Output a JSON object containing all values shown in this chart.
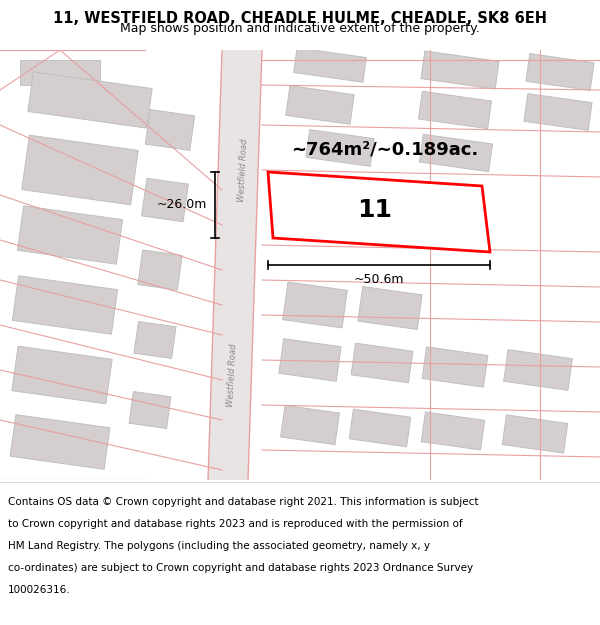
{
  "title_line1": "11, WESTFIELD ROAD, CHEADLE HULME, CHEADLE, SK8 6EH",
  "title_line2": "Map shows position and indicative extent of the property.",
  "bg_color": "#ffffff",
  "map_bg": "#f8f4f4",
  "road_fill": "#e8e4e4",
  "building_color": "#d4cece",
  "building_edge": "#bbbbbb",
  "highlight_color": "#ff0000",
  "road_line_color": "#e8a0a0",
  "area_text": "~764m²/~0.189ac.",
  "number_text": "11",
  "dim_width": "~50.6m",
  "dim_height": "~26.0m",
  "road_label": "Westfield Road",
  "footer_lines": [
    "Contains OS data © Crown copyright and database right 2021. This information is subject",
    "to Crown copyright and database rights 2023 and is reproduced with the permission of",
    "HM Land Registry. The polygons (including the associated geometry, namely x, y",
    "co-ordinates) are subject to Crown copyright and database rights 2023 Ordnance Survey",
    "100026316."
  ],
  "title_fontsize": 10.5,
  "subtitle_fontsize": 9,
  "footer_fontsize": 7.5,
  "area_fontsize": 13,
  "number_fontsize": 18,
  "dim_fontsize": 9
}
